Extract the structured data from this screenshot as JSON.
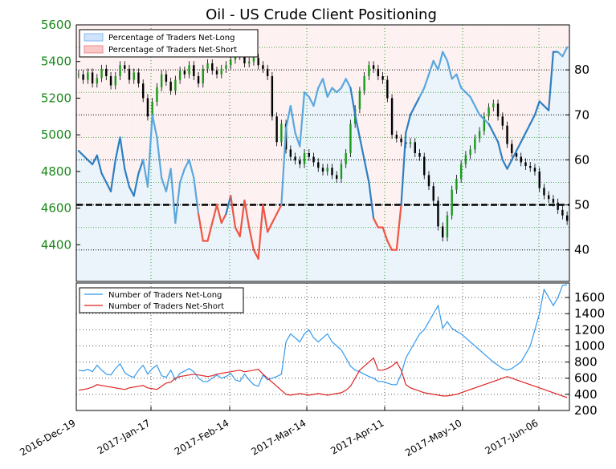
{
  "chart_data": [
    {
      "type": "line",
      "title": "Oil - US Crude Client Positioning",
      "x_ticks": [
        "2016-Dec-19",
        "2017-Jan-17",
        "2017-Feb-14",
        "2017-Mar-14",
        "2017-Apr-11",
        "2017-May-10",
        "2017-Jun-06"
      ],
      "y_left_ticks": [
        "4400",
        "4600",
        "4800",
        "5000",
        "5200",
        "5400",
        "5600"
      ],
      "y_left_range": [
        4200,
        5600
      ],
      "y_right_ticks": [
        "40",
        "50",
        "60",
        "70",
        "80"
      ],
      "y_right_range": [
        33,
        90
      ],
      "legend": [
        "Percentage of Traders Net-Long",
        "Percentage of Traders Net-Short"
      ],
      "legend_position": "top-left",
      "reference_level": 50,
      "price_series": [
        5330,
        5300,
        5340,
        5280,
        5310,
        5360,
        5320,
        5270,
        5320,
        5380,
        5360,
        5300,
        5340,
        5280,
        5200,
        5100,
        5180,
        5260,
        5330,
        5290,
        5240,
        5300,
        5350,
        5330,
        5380,
        5320,
        5280,
        5360,
        5390,
        5350,
        5330,
        5360,
        5380,
        5410,
        5440,
        5430,
        5390,
        5400,
        5420,
        5380,
        5360,
        5320,
        5100,
        4960,
        5060,
        4920,
        4880,
        4860,
        4840,
        4900,
        4880,
        4850,
        4820,
        4800,
        4820,
        4780,
        4760,
        4840,
        4900,
        5060,
        5140,
        5240,
        5320,
        5380,
        5360,
        5320,
        5300,
        5200,
        5000,
        4980,
        4960,
        4950,
        4960,
        4900,
        4880,
        4780,
        4720,
        4640,
        4500,
        4440,
        4560,
        4700,
        4760,
        4840,
        4890,
        4920,
        4980,
        5020,
        5100,
        5150,
        5170,
        5100,
        5050,
        4950,
        4900,
        4880,
        4850,
        4830,
        4820,
        4800,
        4710,
        4670,
        4650,
        4630,
        4590,
        4560,
        4530
      ],
      "percentage_net_long": [
        62,
        61,
        60,
        59,
        61,
        57,
        55,
        53,
        60,
        65,
        58,
        54,
        52,
        57,
        60,
        54,
        70,
        65,
        56,
        53,
        58,
        46,
        55,
        58,
        60,
        56,
        48,
        42,
        42,
        46,
        50,
        46,
        48,
        52,
        45,
        43,
        51,
        45,
        40,
        38,
        50,
        44,
        46,
        48,
        50,
        67,
        72,
        66,
        63,
        75,
        74,
        72,
        76,
        78,
        74,
        76,
        75,
        76,
        78,
        76,
        70,
        65,
        60,
        55,
        47,
        45,
        45,
        42,
        40,
        40,
        50,
        66,
        70,
        72,
        74,
        76,
        79,
        82,
        80,
        84,
        82,
        78,
        79,
        76,
        75,
        74,
        72,
        70,
        69,
        68,
        66,
        64,
        60,
        58,
        60,
        62,
        64,
        66,
        68,
        70,
        73,
        72,
        71,
        84,
        84,
        83,
        85
      ]
    },
    {
      "type": "line",
      "x_ticks": [
        "2016-Dec-19",
        "2017-Jan-17",
        "2017-Feb-14",
        "2017-Mar-14",
        "2017-Apr-11",
        "2017-May-10",
        "2017-Jun-06"
      ],
      "y_right_ticks": [
        "200",
        "400",
        "600",
        "800",
        "1000",
        "1200",
        "1400",
        "1600"
      ],
      "y_range": [
        200,
        1780
      ],
      "legend_position": "top-left",
      "series": [
        {
          "name": "Number of Traders Net-Long",
          "color": "#3399ee",
          "values": [
            700,
            690,
            710,
            680,
            760,
            700,
            650,
            640,
            720,
            780,
            670,
            630,
            610,
            700,
            760,
            650,
            720,
            760,
            630,
            610,
            700,
            580,
            660,
            690,
            720,
            680,
            600,
            560,
            560,
            600,
            640,
            600,
            620,
            660,
            580,
            560,
            650,
            580,
            520,
            500,
            640,
            580,
            600,
            620,
            650,
            1050,
            1150,
            1100,
            1050,
            1150,
            1200,
            1100,
            1050,
            1100,
            1150,
            1050,
            1000,
            950,
            850,
            750,
            700,
            680,
            650,
            620,
            600,
            560,
            560,
            540,
            520,
            520,
            650,
            850,
            950,
            1050,
            1150,
            1200,
            1300,
            1400,
            1500,
            1220,
            1300,
            1220,
            1180,
            1150,
            1100,
            1050,
            1000,
            950,
            900,
            850,
            800,
            760,
            720,
            700,
            720,
            760,
            800,
            900,
            1000,
            1200,
            1400,
            1700,
            1600,
            1500,
            1600,
            1750,
            1760
          ]
        },
        {
          "name": "Number of Traders Net-Short",
          "color": "#dd2222",
          "values": [
            450,
            460,
            470,
            490,
            520,
            510,
            500,
            490,
            480,
            470,
            460,
            480,
            490,
            500,
            510,
            480,
            470,
            460,
            500,
            540,
            550,
            600,
            620,
            630,
            640,
            650,
            640,
            630,
            620,
            630,
            650,
            660,
            670,
            680,
            690,
            700,
            680,
            690,
            700,
            710,
            650,
            600,
            550,
            500,
            450,
            400,
            390,
            400,
            410,
            400,
            390,
            400,
            410,
            400,
            390,
            400,
            410,
            420,
            450,
            500,
            600,
            700,
            750,
            800,
            850,
            700,
            700,
            720,
            750,
            800,
            700,
            520,
            480,
            460,
            440,
            420,
            410,
            400,
            390,
            380,
            380,
            390,
            400,
            420,
            440,
            460,
            480,
            500,
            520,
            540,
            560,
            580,
            600,
            620,
            600,
            580,
            560,
            540,
            520,
            500,
            480,
            460,
            440,
            420,
            400,
            380,
            360
          ]
        }
      ]
    }
  ]
}
